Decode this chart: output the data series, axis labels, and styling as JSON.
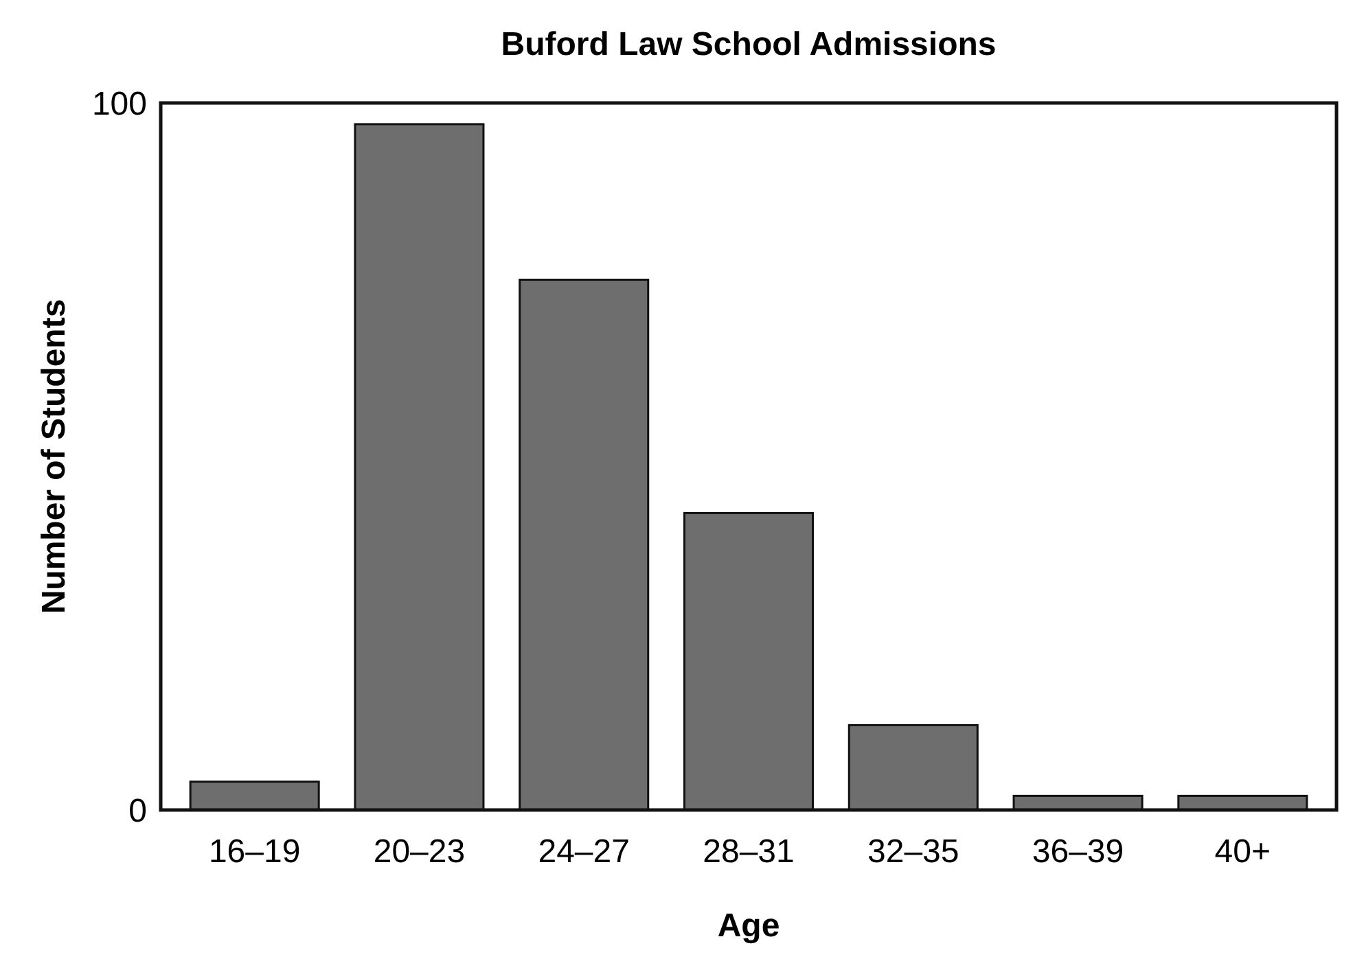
{
  "chart_data": {
    "type": "bar",
    "title": "Buford Law School Admissions",
    "xlabel": "Age",
    "ylabel": "Number of Students",
    "categories": [
      "16–19",
      "20–23",
      "24–27",
      "28–31",
      "32–35",
      "36–39",
      "40+"
    ],
    "values": [
      4,
      97,
      75,
      42,
      12,
      2,
      2
    ],
    "color": "#6e6e6e",
    "ylim": [
      0,
      100
    ],
    "yticks": [
      0,
      100
    ]
  }
}
